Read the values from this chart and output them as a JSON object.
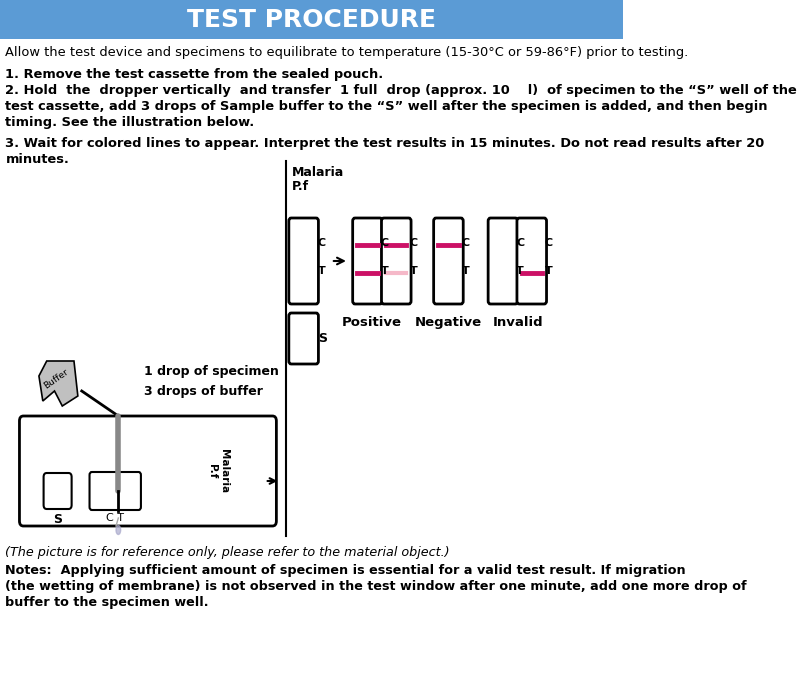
{
  "title": "TEST PROCEDURE",
  "title_bg": "#5b9bd5",
  "title_color": "#ffffff",
  "bg_color": "#ffffff",
  "text_color": "#000000",
  "line1": "Allow the test device and specimens to equilibrate to temperature (15-30°C or 59-86°F) prior to testing.",
  "line2": "1. Remove the test cassette from the sealed pouch.",
  "line3a": "2. Hold  the  dropper vertically  and transfer  1 full  drop (approx. 10    l)  of specimen to the “S” well of the",
  "line3b": "test cassette, add 3 drops of Sample buffer to the “S” well after the specimen is added, and then begin",
  "line3c": "timing. See the illustration below.",
  "line4a": "3. Wait for colored lines to appear. Interpret the test results in 15 minutes. Do not read results after 20",
  "line4b": "minutes.",
  "note1": "(The picture is for reference only, please refer to the material object.)",
  "note2": "Notes:  Applying sufficient amount of specimen is essential for a valid test result. If migration",
  "note3": "(the wetting of membrane) is not observed in the test window after one minute, add one more drop of",
  "note4": "buffer to the specimen well.",
  "drop_label1": "1 drop of specimen",
  "drop_label2": "3 drops of buffer",
  "malaria_label": "Malaria\nP.f",
  "positive_label": "Positive",
  "negative_label": "Negative",
  "invalid_label": "Invalid",
  "pink_color": "#cc1166",
  "light_pink": "#f5b8c8"
}
